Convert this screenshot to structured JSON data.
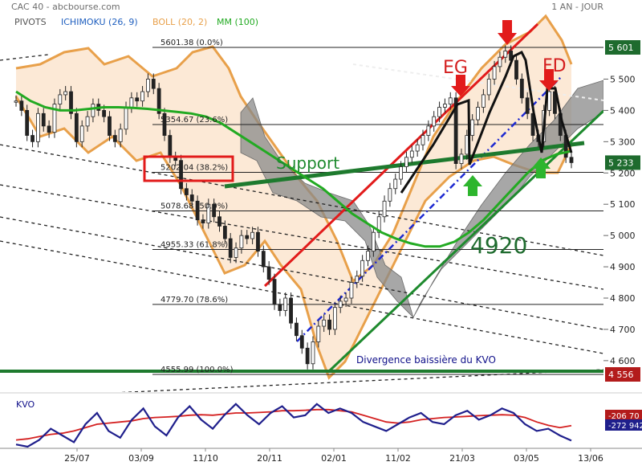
{
  "header": {
    "title": "CAC 40 - abcbourse.com",
    "timeframe": "1 AN - JOUR",
    "legend": [
      {
        "label": "PIVOTS",
        "color": "#555555"
      },
      {
        "label": "ICHIMOKU (26, 9)",
        "color": "#1f5fbf"
      },
      {
        "label": "BOLL (20, 2)",
        "color": "#e8a04a"
      },
      {
        "label": "MM (100)",
        "color": "#22aa22"
      }
    ]
  },
  "chart_data": {
    "type": "line",
    "title": "CAC 40",
    "y_axis": {
      "ticks": [
        4600,
        4700,
        4800,
        4900,
        5000,
        5100,
        5200,
        5300,
        5400,
        5500
      ],
      "ylim": [
        4545,
        5660
      ],
      "tick_labels": [
        "4 600",
        "4 700",
        "4 800",
        "4 900",
        "5 000",
        "5 100",
        "5 200",
        "5 300",
        "5 400",
        "5 500"
      ]
    },
    "x_axis": {
      "tick_labels": [
        "25/07",
        "03/09",
        "11/10",
        "20/11",
        "02/01",
        "11/02",
        "21/03",
        "03/05",
        "13/06"
      ],
      "range_label": "1 AN"
    },
    "price_badges": [
      {
        "label": "5 601",
        "value": 5601.38,
        "color": "#1e6b2e"
      },
      {
        "label": "5 233",
        "value": 5233,
        "color": "#1e6b2e"
      },
      {
        "label": "4 556",
        "value": 4555.99,
        "color": "#b31b1b"
      }
    ],
    "fibonacci_levels": [
      {
        "label": "5601.38  (0.0%)",
        "value": 5601.38
      },
      {
        "label": "5354.67  (23.6%)",
        "value": 5354.67
      },
      {
        "label": "5202.04  (38.2%)",
        "value": 5202.04,
        "highlight": true
      },
      {
        "label": "5078.68  (50.0%)",
        "value": 5078.68
      },
      {
        "label": "4955.33  (61.8%)",
        "value": 4955.33
      },
      {
        "label": "4779.70  (78.6%)",
        "value": 4779.7
      },
      {
        "label": "4555.99  (100.0%)",
        "value": 4555.99
      }
    ],
    "series": [
      {
        "name": "CAC 40",
        "color": "#222222",
        "values": [
          5430,
          5400,
          5320,
          5300,
          5390,
          5350,
          5330,
          5420,
          5450,
          5460,
          5390,
          5300,
          5350,
          5380,
          5420,
          5400,
          5380,
          5320,
          5300,
          5340,
          5410,
          5440,
          5430,
          5460,
          5500,
          5470,
          5390,
          5320,
          5250,
          5240,
          5150,
          5130,
          5110,
          5050,
          5040,
          5100,
          5060,
          5030,
          4990,
          4930,
          4960,
          5000,
          4990,
          5010,
          4950,
          4900,
          4860,
          4780,
          4760,
          4800,
          4720,
          4680,
          4640,
          4590,
          4660,
          4710,
          4730,
          4700,
          4770,
          4790,
          4800,
          4850,
          4870,
          4920,
          4950,
          5010,
          5060,
          5110,
          5150,
          5180,
          5220,
          5250,
          5270,
          5290,
          5320,
          5350,
          5380,
          5410,
          5420,
          5440,
          5230,
          5260,
          5320,
          5370,
          5410,
          5450,
          5500,
          5540,
          5570,
          5590,
          5560,
          5500,
          5440,
          5390,
          5320,
          5300,
          5400,
          5460,
          5390,
          5320,
          5250,
          5233
        ]
      },
      {
        "name": "MM (100)",
        "color": "#22aa22",
        "values": [
          5460,
          5430,
          5410,
          5400,
          5400,
          5405,
          5410,
          5410,
          5408,
          5405,
          5400,
          5395,
          5390,
          5380,
          5360,
          5330,
          5300,
          5270,
          5240,
          5210,
          5180,
          5150,
          5110,
          5070,
          5040,
          5010,
          4990,
          4975,
          4965,
          4965,
          4980,
          5010,
          5050,
          5100,
          5150,
          5200,
          5240,
          5260,
          5270
        ]
      },
      {
        "name": "KVO",
        "color": "#1f1f8c",
        "values": [
          -290,
          -300,
          -270,
          -220,
          -250,
          -280,
          -200,
          -150,
          -230,
          -260,
          -180,
          -130,
          -210,
          -250,
          -170,
          -120,
          -180,
          -220,
          -160,
          -110,
          -160,
          -200,
          -150,
          -120,
          -170,
          -160,
          -110,
          -150,
          -130,
          -150,
          -190,
          -210,
          -230,
          -200,
          -170,
          -150,
          -190,
          -200,
          -160,
          -140,
          -180,
          -160,
          -130,
          -150,
          -200,
          -230,
          -220,
          -250,
          -273
        ]
      },
      {
        "name": "KVO signal",
        "color": "#d42020",
        "values": [
          -270,
          -265,
          -255,
          -245,
          -240,
          -230,
          -215,
          -200,
          -195,
          -190,
          -185,
          -175,
          -170,
          -168,
          -165,
          -160,
          -158,
          -160,
          -155,
          -150,
          -150,
          -148,
          -145,
          -140,
          -140,
          -138,
          -135,
          -135,
          -140,
          -145,
          -160,
          -175,
          -190,
          -195,
          -190,
          -180,
          -175,
          -170,
          -168,
          -165,
          -162,
          -160,
          -158,
          -160,
          -170,
          -190,
          -205,
          -215,
          -206
        ]
      }
    ],
    "kvo": {
      "label": "KVO",
      "badges": [
        {
          "label": "-206 70",
          "color": "#b31b1b"
        },
        {
          "label": "-272 942",
          "color": "#1f1f8c"
        }
      ]
    },
    "annotations": [
      {
        "label": "Support",
        "color": "#1e8a2e"
      },
      {
        "label": "EG",
        "color": "#d41e1e"
      },
      {
        "label": "FD",
        "color": "#d41e1e"
      },
      {
        "label": "4920",
        "color": "#1e6b2e"
      },
      {
        "label": "Divergence baissière du KVO",
        "color": "#10108a"
      }
    ],
    "grid": false
  }
}
